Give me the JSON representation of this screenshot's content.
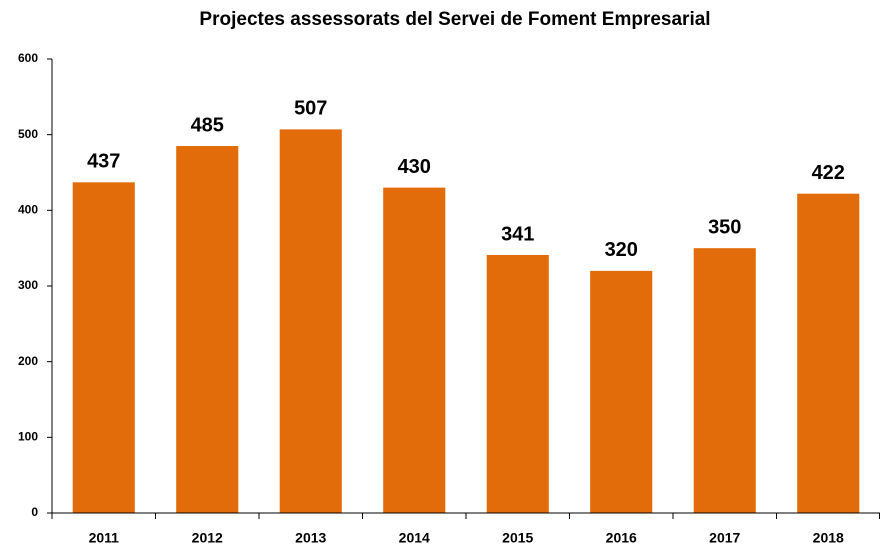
{
  "chart_data": {
    "type": "bar",
    "title": "Projectes assessorats del Servei de Foment Empresarial",
    "categories": [
      "2011",
      "2012",
      "2013",
      "2014",
      "2015",
      "2016",
      "2017",
      "2018"
    ],
    "values": [
      437,
      485,
      507,
      430,
      341,
      320,
      350,
      422
    ],
    "color": "#e36c0a",
    "ylim": [
      0,
      600
    ],
    "yticks": [
      0,
      100,
      200,
      300,
      400,
      500,
      600
    ],
    "grid": false
  }
}
